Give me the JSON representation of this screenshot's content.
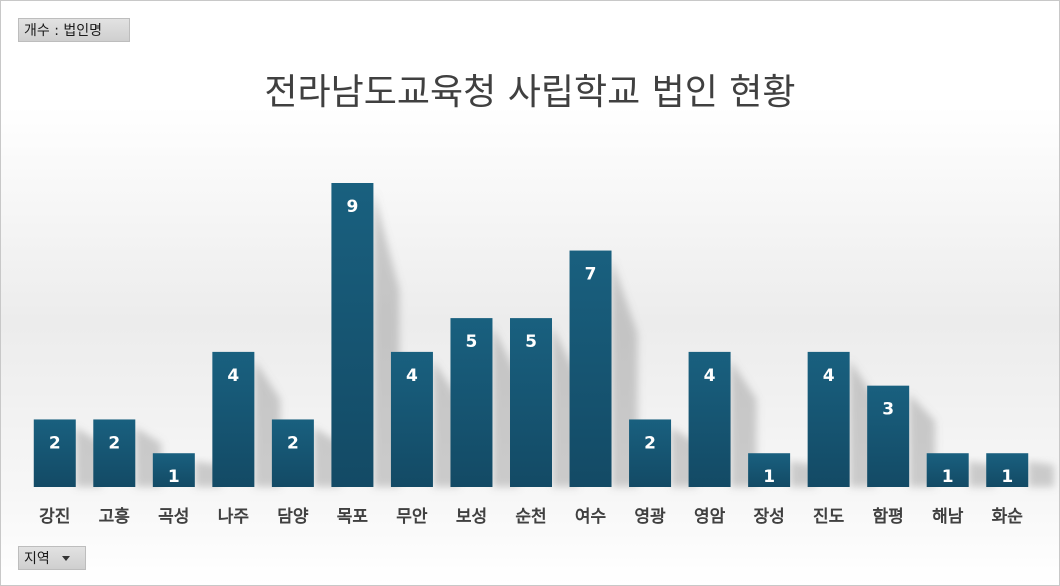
{
  "value_field_button": "개수 : 법인명",
  "axis_field_button": "지역",
  "chart_data": {
    "type": "bar",
    "title": "전라남도교육청 사립학교 법인 현황",
    "categories": [
      "강진",
      "고흥",
      "곡성",
      "나주",
      "담양",
      "목포",
      "무안",
      "보성",
      "순천",
      "여수",
      "영광",
      "영암",
      "장성",
      "진도",
      "함평",
      "해남",
      "화순"
    ],
    "series": [
      {
        "values": [
          2,
          2,
          1,
          4,
          2,
          9,
          4,
          5,
          5,
          7,
          2,
          4,
          1,
          4,
          3,
          1,
          1
        ]
      }
    ],
    "ylim": [
      0,
      9
    ],
    "grid": false,
    "legend": "none",
    "bar_color_top": "#19607f",
    "bar_color_bottom": "#134a65"
  }
}
